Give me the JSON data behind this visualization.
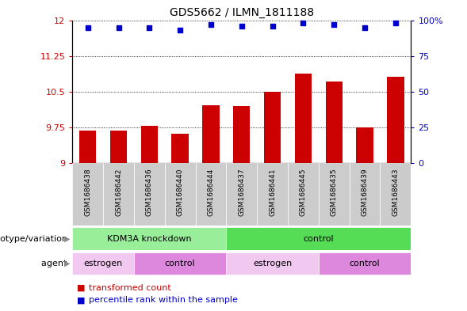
{
  "title": "GDS5662 / ILMN_1811188",
  "samples": [
    "GSM1686438",
    "GSM1686442",
    "GSM1686436",
    "GSM1686440",
    "GSM1686444",
    "GSM1686437",
    "GSM1686441",
    "GSM1686445",
    "GSM1686435",
    "GSM1686439",
    "GSM1686443"
  ],
  "bar_values": [
    9.68,
    9.68,
    9.78,
    9.62,
    10.22,
    10.2,
    10.5,
    10.88,
    10.72,
    9.75,
    10.82
  ],
  "dot_values": [
    95,
    95,
    95,
    93,
    97,
    96,
    96,
    98,
    97,
    95,
    98
  ],
  "ylim_left": [
    9.0,
    12.0
  ],
  "ylim_right": [
    0,
    100
  ],
  "yticks_left": [
    9.0,
    9.75,
    10.5,
    11.25,
    12.0
  ],
  "ytick_labels_left": [
    "9",
    "9.75",
    "10.5",
    "11.25",
    "12"
  ],
  "ytick_labels_right": [
    "0",
    "25",
    "50",
    "75",
    "100%"
  ],
  "bar_color": "#cc0000",
  "dot_color": "#0000cc",
  "bar_bottom": 9.0,
  "genotype_groups": [
    {
      "label": "KDM3A knockdown",
      "start": 0,
      "end": 5,
      "color": "#99ee99"
    },
    {
      "label": "control",
      "start": 5,
      "end": 11,
      "color": "#55dd55"
    }
  ],
  "agent_groups": [
    {
      "label": "estrogen",
      "start": 0,
      "end": 2,
      "color": "#f0c8f0"
    },
    {
      "label": "control",
      "start": 2,
      "end": 5,
      "color": "#dd88dd"
    },
    {
      "label": "estrogen",
      "start": 5,
      "end": 8,
      "color": "#f0c8f0"
    },
    {
      "label": "control",
      "start": 8,
      "end": 11,
      "color": "#dd88dd"
    }
  ],
  "genotype_label": "genotype/variation",
  "agent_label": "agent",
  "legend_items": [
    {
      "label": "transformed count",
      "color": "#cc0000"
    },
    {
      "label": "percentile rank within the sample",
      "color": "#0000cc"
    }
  ],
  "tick_label_color_left": "#cc0000",
  "tick_label_color_right": "#0000cc",
  "bar_width": 0.55,
  "sample_bg_color": "#cccccc",
  "sample_separator_color": "white"
}
